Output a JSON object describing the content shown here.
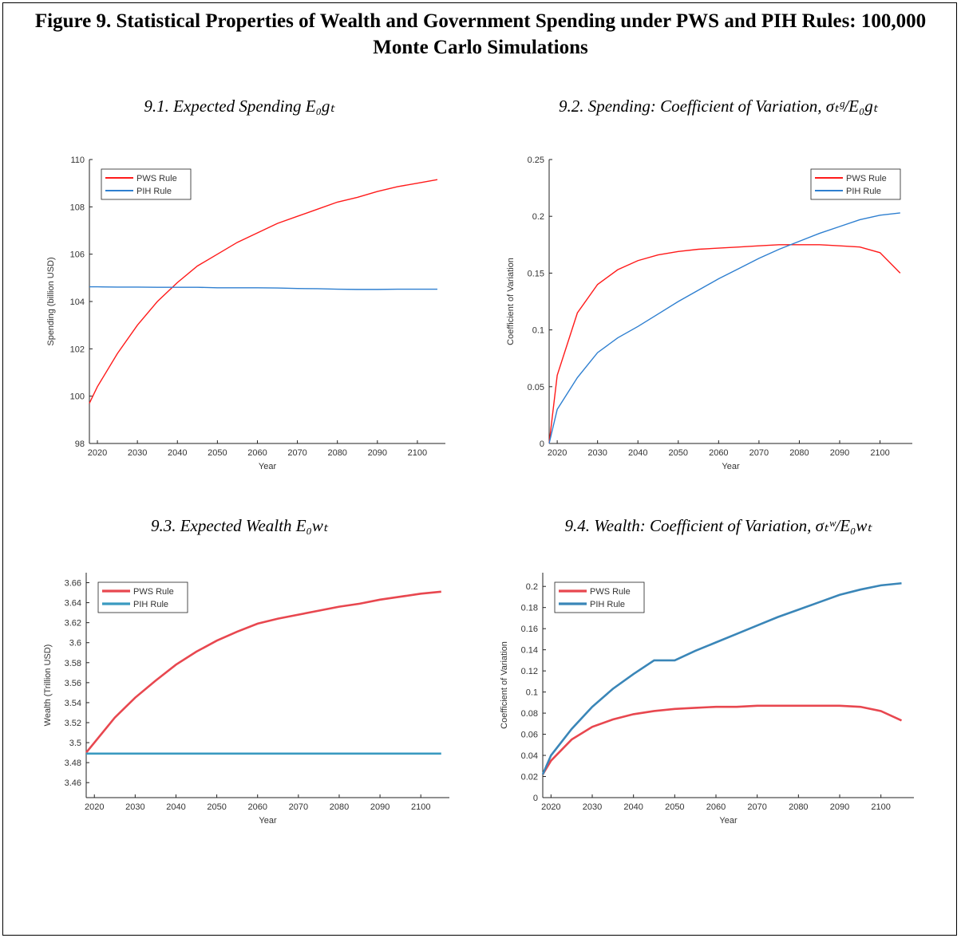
{
  "title": "Figure 9. Statistical Properties of Wealth and Government Spending under PWS and PIH Rules: 100,000 Monte Carlo Simulations",
  "chart_data": [
    {
      "type": "line",
      "title": "9.1.  Expected Spending E₀gₜ",
      "x_label": "Year",
      "y_label": "Spending (billion USD)",
      "x": [
        2018,
        2020,
        2025,
        2030,
        2035,
        2040,
        2045,
        2050,
        2055,
        2060,
        2065,
        2070,
        2075,
        2080,
        2085,
        2090,
        2095,
        2100,
        2105
      ],
      "series": [
        {
          "name": "PWS Rule",
          "color": "#ff1a1a",
          "values": [
            99.7,
            100.4,
            101.8,
            103.0,
            104.0,
            104.8,
            105.5,
            106.0,
            106.5,
            106.9,
            107.3,
            107.6,
            107.9,
            108.2,
            108.4,
            108.65,
            108.85,
            109.0,
            109.15
          ]
        },
        {
          "name": "PIH Rule",
          "color": "#2e7fd0",
          "values": [
            104.62,
            104.62,
            104.61,
            104.61,
            104.6,
            104.6,
            104.6,
            104.58,
            104.58,
            104.58,
            104.57,
            104.55,
            104.54,
            104.52,
            104.51,
            104.51,
            104.52,
            104.52,
            104.52
          ]
        }
      ],
      "xlim": [
        2018,
        2107
      ],
      "xticks": [
        2020,
        2030,
        2040,
        2050,
        2060,
        2070,
        2080,
        2090,
        2100
      ],
      "ylim": [
        98,
        110
      ],
      "yticks": [
        98,
        100,
        102,
        104,
        106,
        108,
        110
      ],
      "legend": "upper-left"
    },
    {
      "type": "line",
      "title": "9.2.  Spending: Coefficient of Variation, σₜᵍ/E₀gₜ",
      "x_label": "Year",
      "y_label": "Coefficient of Variation",
      "x": [
        2018,
        2020,
        2025,
        2030,
        2035,
        2040,
        2045,
        2050,
        2055,
        2060,
        2065,
        2070,
        2075,
        2080,
        2085,
        2090,
        2095,
        2100,
        2105
      ],
      "series": [
        {
          "name": "PWS Rule",
          "color": "#ff1a1a",
          "values": [
            0,
            0.06,
            0.115,
            0.14,
            0.153,
            0.161,
            0.166,
            0.169,
            0.171,
            0.172,
            0.173,
            0.174,
            0.175,
            0.175,
            0.175,
            0.174,
            0.173,
            0.168,
            0.15
          ]
        },
        {
          "name": "PIH Rule",
          "color": "#2e7fd0",
          "values": [
            0,
            0.03,
            0.058,
            0.08,
            0.093,
            0.103,
            0.114,
            0.125,
            0.135,
            0.145,
            0.154,
            0.163,
            0.171,
            0.178,
            0.185,
            0.191,
            0.197,
            0.201,
            0.203
          ]
        }
      ],
      "xlim": [
        2018,
        2108
      ],
      "xticks": [
        2020,
        2030,
        2040,
        2050,
        2060,
        2070,
        2080,
        2090,
        2100
      ],
      "ylim": [
        0,
        0.25
      ],
      "yticks": [
        0,
        0.05,
        0.1,
        0.15,
        0.2,
        0.25
      ],
      "legend": "upper-right"
    },
    {
      "type": "line",
      "title": "9.3.  Expected Wealth E₀wₜ",
      "x_label": "Year",
      "y_label": "Wealth (Trillion USD)",
      "x": [
        2018,
        2020,
        2025,
        2030,
        2035,
        2040,
        2045,
        2050,
        2055,
        2060,
        2065,
        2070,
        2075,
        2080,
        2085,
        2090,
        2095,
        2100,
        2105
      ],
      "series": [
        {
          "name": "PWS Rule",
          "color": "#e8474f",
          "values": [
            3.49,
            3.5,
            3.525,
            3.545,
            3.562,
            3.578,
            3.591,
            3.602,
            3.611,
            3.619,
            3.624,
            3.628,
            3.632,
            3.636,
            3.639,
            3.643,
            3.646,
            3.649,
            3.651
          ]
        },
        {
          "name": "PIH Rule",
          "color": "#3a9ac0",
          "values": [
            3.489,
            3.489,
            3.489,
            3.489,
            3.489,
            3.489,
            3.489,
            3.489,
            3.489,
            3.489,
            3.489,
            3.489,
            3.489,
            3.489,
            3.489,
            3.489,
            3.489,
            3.489,
            3.489
          ]
        }
      ],
      "xlim": [
        2018,
        2107
      ],
      "xticks": [
        2020,
        2030,
        2040,
        2050,
        2060,
        2070,
        2080,
        2090,
        2100
      ],
      "ylim": [
        3.445,
        3.67
      ],
      "yticks": [
        3.46,
        3.48,
        3.5,
        3.52,
        3.54,
        3.56,
        3.58,
        3.6,
        3.62,
        3.64,
        3.66
      ],
      "legend": "upper-left"
    },
    {
      "type": "line",
      "title": "9.4.  Wealth: Coefficient of Variation, σₜʷ/E₀wₜ",
      "x_label": "Year",
      "y_label": "Coefficient of Variation",
      "x": [
        2018,
        2020,
        2025,
        2030,
        2035,
        2040,
        2045,
        2050,
        2055,
        2060,
        2065,
        2070,
        2075,
        2080,
        2085,
        2090,
        2095,
        2100,
        2105
      ],
      "series": [
        {
          "name": "PWS Rule",
          "color": "#e8474f",
          "values": [
            0.022,
            0.035,
            0.055,
            0.067,
            0.074,
            0.079,
            0.082,
            0.084,
            0.085,
            0.086,
            0.086,
            0.087,
            0.087,
            0.087,
            0.087,
            0.087,
            0.086,
            0.082,
            0.073
          ]
        },
        {
          "name": "PIH Rule",
          "color": "#3a86b8",
          "values": [
            0.022,
            0.04,
            0.065,
            0.086,
            0.103,
            0.117,
            0.13,
            0.13,
            0.139,
            0.147,
            0.155,
            0.163,
            0.171,
            0.178,
            0.185,
            0.192,
            0.197,
            0.201,
            0.203
          ]
        }
      ],
      "xlim": [
        2018,
        2108
      ],
      "xticks": [
        2020,
        2030,
        2040,
        2050,
        2060,
        2070,
        2080,
        2090,
        2100
      ],
      "ylim": [
        0,
        0.213
      ],
      "yticks": [
        0,
        0.02,
        0.04,
        0.06,
        0.08,
        0.1,
        0.12,
        0.14,
        0.16,
        0.18,
        0.2
      ],
      "legend": "upper-left"
    }
  ]
}
